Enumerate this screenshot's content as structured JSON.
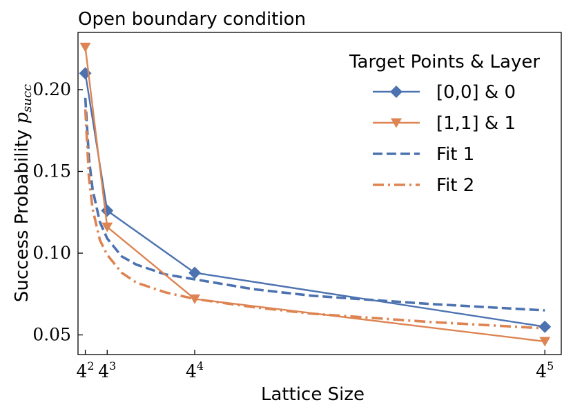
{
  "chart_data": {
    "type": "line",
    "title": "Open boundary condition",
    "xlabel": "Lattice Size",
    "ylabel": {
      "text": "Success Probability ",
      "symbol": "p",
      "subscript": "succ"
    },
    "x": [
      16,
      64,
      256,
      1024
    ],
    "x_ticks": [
      {
        "value": 16,
        "base": "4",
        "exponent": "2"
      },
      {
        "value": 64,
        "base": "4",
        "exponent": "3"
      },
      {
        "value": 256,
        "base": "4",
        "exponent": "4"
      },
      {
        "value": 1024,
        "base": "4",
        "exponent": "5"
      }
    ],
    "y_ticks": [
      {
        "value": 0.05,
        "label": "0.05"
      },
      {
        "value": 0.1,
        "label": "0.10"
      },
      {
        "value": 0.15,
        "label": "0.15"
      },
      {
        "value": 0.2,
        "label": "0.20"
      }
    ],
    "xlim": [
      0,
      1060
    ],
    "ylim": [
      0.038,
      0.235
    ],
    "grid": false,
    "legend": {
      "title": "Target Points & Layer",
      "position": "top-right"
    },
    "series": [
      {
        "name": "[0,0] & 0",
        "kind": "data",
        "color": "#4c72b0",
        "marker": "diamond",
        "linestyle": "solid",
        "x": [
          16,
          64,
          256,
          1024
        ],
        "values": [
          0.21,
          0.126,
          0.088,
          0.055
        ]
      },
      {
        "name": "[1,1] & 1",
        "kind": "data",
        "color": "#dd8452",
        "marker": "triangle-down",
        "linestyle": "solid",
        "x": [
          16,
          64,
          256,
          1024
        ],
        "values": [
          0.226,
          0.116,
          0.072,
          0.046
        ]
      },
      {
        "name": "Fit 1",
        "kind": "fit",
        "color": "#4c72b0",
        "marker": "none",
        "linestyle": "dashed",
        "x": [
          16,
          24,
          32,
          48,
          64,
          96,
          128,
          192,
          256,
          384,
          512,
          768,
          1024
        ],
        "values": [
          0.195,
          0.158,
          0.139,
          0.119,
          0.109,
          0.098,
          0.093,
          0.087,
          0.084,
          0.078,
          0.074,
          0.069,
          0.065
        ]
      },
      {
        "name": "Fit 2",
        "kind": "fit",
        "color": "#dd8452",
        "marker": "none",
        "linestyle": "dashdot",
        "x": [
          16,
          24,
          32,
          48,
          64,
          96,
          128,
          192,
          256,
          384,
          512,
          768,
          1024
        ],
        "values": [
          0.188,
          0.146,
          0.127,
          0.108,
          0.099,
          0.088,
          0.082,
          0.076,
          0.072,
          0.067,
          0.063,
          0.058,
          0.054
        ]
      }
    ]
  }
}
